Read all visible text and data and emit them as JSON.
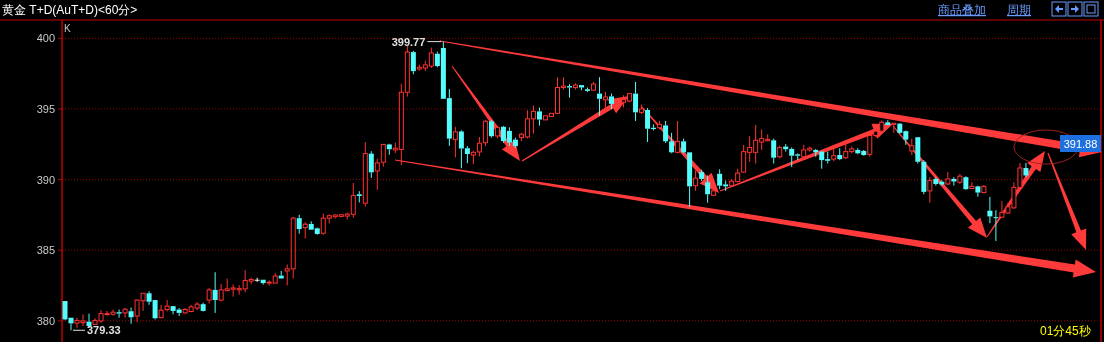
{
  "chart_data": {
    "type": "candlestick",
    "title": "黄金 T+D(AuT+D)<60分>",
    "categories": [
      null,
      null,
      null,
      null,
      null,
      null,
      null,
      null,
      null,
      null,
      null,
      null,
      null,
      null,
      null,
      null,
      null,
      null,
      null,
      null,
      null,
      null,
      null,
      null,
      null,
      null,
      null,
      null,
      null,
      null,
      null,
      null,
      null,
      null,
      null,
      null,
      null,
      null,
      null,
      null,
      null,
      null,
      null,
      null,
      null,
      null,
      null,
      null,
      null,
      null,
      null,
      null,
      null,
      null,
      null,
      null,
      null,
      null,
      null,
      null,
      null,
      null,
      null,
      null,
      null,
      null,
      null,
      null,
      null,
      null,
      null,
      null,
      null,
      null,
      null,
      null,
      null,
      null,
      null,
      null,
      null,
      null,
      null,
      null,
      null,
      null,
      null,
      null,
      null,
      null,
      null,
      null,
      null,
      null,
      null,
      null,
      null,
      null,
      null,
      null,
      null,
      null,
      null,
      null,
      null,
      null,
      null,
      null,
      null,
      null,
      null,
      null,
      null,
      null,
      null,
      null,
      null,
      null,
      null,
      null,
      null,
      null,
      null,
      null,
      null,
      null,
      null,
      null,
      null,
      null,
      null,
      null,
      null,
      null,
      null,
      null,
      null,
      null,
      null,
      null,
      null,
      null,
      null,
      null,
      null,
      null,
      null,
      null,
      null,
      null,
      null,
      null,
      null,
      null,
      null,
      null,
      null,
      null,
      null,
      null,
      null,
      null,
      null,
      null,
      null,
      null,
      null,
      null,
      null,
      null,
      null,
      null,
      null
    ],
    "ohlc": [
      [
        381.4,
        381.4,
        380.05,
        380.1
      ],
      [
        380.22,
        380.22,
        379.33,
        379.82
      ],
      [
        379.84,
        380.22,
        379.5,
        380.03
      ],
      [
        379.87,
        380.46,
        379.63,
        379.99
      ],
      [
        379.94,
        380.51,
        379.51,
        379.63
      ],
      [
        379.75,
        380.18,
        379.7,
        380.03
      ],
      [
        379.99,
        380.75,
        379.87,
        380.51
      ],
      [
        380.44,
        380.7,
        380.37,
        380.51
      ],
      [
        380.46,
        380.8,
        380.37,
        380.61
      ],
      [
        380.61,
        380.8,
        380.22,
        380.51
      ],
      [
        380.56,
        380.9,
        380.22,
        380.82
      ],
      [
        380.68,
        380.94,
        379.79,
        380.25
      ],
      [
        380.34,
        381.52,
        379.91,
        381.47
      ],
      [
        381.42,
        381.95,
        380.7,
        381.95
      ],
      [
        381.95,
        382.09,
        381.13,
        381.35
      ],
      [
        381.47,
        381.47,
        380.1,
        380.18
      ],
      [
        380.22,
        381.13,
        380.18,
        380.75
      ],
      [
        380.8,
        381.47,
        380.66,
        381.04
      ],
      [
        381.04,
        381.04,
        380.46,
        380.7
      ],
      [
        380.8,
        380.9,
        380.34,
        380.56
      ],
      [
        380.56,
        380.9,
        380.51,
        380.8
      ],
      [
        380.66,
        381.13,
        380.61,
        380.99
      ],
      [
        380.9,
        381.33,
        380.75,
        381.18
      ],
      [
        381.18,
        381.28,
        380.66,
        380.7
      ],
      [
        381.47,
        382.33,
        381.23,
        382.19
      ],
      [
        382.19,
        383.44,
        380.56,
        381.47
      ],
      [
        381.47,
        382.62,
        381.37,
        382.19
      ],
      [
        382.14,
        382.98,
        382.09,
        382.26
      ],
      [
        382.24,
        382.57,
        381.71,
        382.33
      ],
      [
        382.19,
        382.52,
        381.85,
        382.28
      ],
      [
        382.26,
        383.58,
        382.02,
        382.86
      ],
      [
        382.81,
        383.05,
        382.62,
        382.93
      ],
      [
        382.91,
        383.05,
        382.76,
        382.91
      ],
      [
        382.91,
        382.91,
        382.57,
        382.67
      ],
      [
        382.67,
        382.86,
        382.5,
        382.74
      ],
      [
        382.67,
        383.39,
        382.67,
        383.17
      ],
      [
        383.2,
        383.53,
        383.0,
        383.0
      ],
      [
        383.53,
        383.99,
        382.5,
        383.68
      ],
      [
        383.68,
        387.36,
        383.0,
        387.27
      ],
      [
        387.27,
        387.51,
        386.17,
        386.5
      ],
      [
        386.6,
        386.98,
        385.83,
        386.84
      ],
      [
        386.86,
        387.05,
        386.45,
        386.45
      ],
      [
        386.55,
        386.6,
        386.1,
        386.15
      ],
      [
        386.2,
        387.59,
        386.1,
        387.27
      ],
      [
        387.27,
        387.54,
        386.89,
        387.44
      ],
      [
        387.37,
        387.54,
        387.25,
        387.49
      ],
      [
        387.39,
        387.51,
        387.34,
        387.51
      ],
      [
        387.42,
        387.66,
        387.18,
        387.56
      ],
      [
        387.54,
        389.76,
        387.3,
        388.87
      ],
      [
        388.96,
        389.18,
        388.38,
        388.84
      ],
      [
        388.33,
        392.66,
        388.09,
        391.84
      ],
      [
        391.84,
        392.01,
        390.12,
        390.51
      ],
      [
        390.61,
        391.47,
        389.28,
        391.18
      ],
      [
        391.23,
        392.49,
        390.92,
        392.49
      ],
      [
        392.49,
        392.54,
        391.76,
        392.15
      ],
      [
        392.1,
        392.61,
        391.88,
        392.22
      ],
      [
        392.13,
        396.79,
        391.04,
        396.18
      ],
      [
        396.18,
        399.49,
        395.87,
        399.03
      ],
      [
        399.03,
        399.11,
        397.46,
        397.68
      ],
      [
        397.83,
        398.14,
        397.71,
        397.95
      ],
      [
        397.9,
        398.41,
        397.68,
        398.12
      ],
      [
        398.04,
        399.35,
        397.9,
        398.96
      ],
      [
        398.91,
        399.06,
        397.95,
        398.04
      ],
      [
        399.32,
        399.77,
        395.72,
        395.72
      ],
      [
        395.77,
        396.42,
        392.39,
        392.9
      ],
      [
        392.83,
        393.74,
        391.57,
        393.38
      ],
      [
        393.41,
        393.5,
        390.8,
        392.2
      ],
      [
        392.22,
        392.37,
        391.16,
        391.81
      ],
      [
        391.74,
        392.05,
        391.09,
        391.93
      ],
      [
        391.96,
        393.02,
        391.64,
        392.58
      ],
      [
        392.61,
        394.23,
        392.37,
        394.13
      ],
      [
        394.13,
        394.23,
        392.97,
        393.07
      ],
      [
        393.09,
        393.82,
        392.92,
        393.7
      ],
      [
        393.74,
        393.8,
        392.61,
        392.73
      ],
      [
        393.45,
        393.7,
        392.37,
        392.61
      ],
      [
        392.83,
        392.97,
        392.25,
        392.37
      ],
      [
        392.97,
        393.31,
        392.73,
        393.21
      ],
      [
        393.02,
        394.9,
        392.92,
        394.3
      ],
      [
        394.3,
        395.24,
        393.26,
        394.83
      ],
      [
        394.83,
        395.1,
        393.82,
        394.25
      ],
      [
        394.23,
        394.52,
        394.2,
        394.52
      ],
      [
        394.47,
        394.7,
        394.45,
        394.69
      ],
      [
        394.69,
        397.25,
        394.64,
        396.52
      ],
      [
        396.52,
        397.25,
        396.38,
        396.62
      ],
      [
        396.62,
        396.76,
        395.8,
        396.52
      ],
      [
        396.52,
        396.81,
        396.38,
        396.69
      ],
      [
        396.69,
        396.69,
        396.33,
        396.52
      ],
      [
        396.4,
        396.52,
        396.21,
        396.28
      ],
      [
        396.33,
        396.91,
        396.28,
        396.76
      ],
      [
        396.09,
        397.25,
        394.52,
        395.72
      ],
      [
        395.65,
        396.21,
        394.76,
        395.85
      ],
      [
        395.89,
        396.09,
        395.0,
        395.36
      ],
      null,
      [
        395.48,
        395.97,
        395.12,
        395.65
      ],
      [
        395.56,
        396.14,
        395.48,
        396.09
      ],
      [
        396.09,
        396.91,
        394.15,
        394.76
      ],
      [
        394.76,
        395.31,
        394.64,
        395.0
      ],
      [
        394.93,
        395.07,
        392.66,
        393.6
      ],
      [
        393.67,
        393.91,
        393.48,
        393.58
      ],
      [
        393.67,
        394.15,
        393.55,
        393.91
      ],
      [
        393.84,
        394.15,
        392.59,
        392.71
      ],
      [
        392.71,
        393.31,
        391.86,
        391.93
      ],
      [
        391.93,
        394.15,
        391.86,
        392.71
      ],
      [
        392.71,
        392.9,
        391.86,
        391.93
      ],
      [
        391.93,
        391.93,
        388.07,
        389.52
      ],
      [
        389.57,
        390.65,
        389.2,
        390.1
      ],
      [
        390.53,
        390.7,
        389.9,
        390.05
      ],
      [
        389.81,
        390.29,
        388.36,
        388.96
      ],
      [
        388.89,
        389.69,
        388.84,
        389.2
      ],
      [
        390.41,
        390.73,
        389.32,
        389.57
      ],
      [
        389.66,
        389.93,
        389.2,
        389.52
      ],
      [
        389.57,
        390.05,
        389.52,
        389.88
      ],
      [
        389.86,
        390.77,
        389.81,
        390.46
      ],
      [
        390.53,
        392.46,
        390.48,
        391.98
      ],
      [
        391.93,
        393.07,
        391.26,
        392.27
      ],
      [
        391.93,
        393.87,
        391.14,
        392.78
      ],
      [
        392.66,
        393.55,
        392.1,
        392.9
      ],
      [
        392.75,
        393.2,
        392.71,
        392.85
      ],
      [
        392.78,
        392.9,
        391.14,
        391.55
      ],
      [
        391.62,
        392.4,
        391.5,
        392.27
      ],
      [
        392.34,
        392.51,
        391.98,
        392.15
      ],
      [
        392.17,
        392.27,
        390.89,
        391.69
      ],
      [
        391.79,
        391.86,
        391.38,
        391.69
      ],
      [
        391.62,
        392.46,
        391.5,
        392.1
      ],
      [
        392.1,
        392.34,
        391.98,
        392.22
      ],
      [
        392.1,
        392.17,
        391.62,
        391.93
      ],
      [
        391.98,
        392.03,
        390.77,
        391.38
      ],
      [
        391.45,
        391.98,
        391.14,
        391.33
      ],
      [
        391.45,
        392.46,
        391.3,
        391.69
      ],
      [
        391.74,
        392.22,
        391.38,
        391.45
      ],
      [
        391.55,
        392.59,
        391.45,
        391.98
      ],
      [
        391.98,
        392.34,
        391.86,
        392.17
      ],
      [
        392.1,
        392.22,
        391.79,
        391.86
      ],
      [
        392.03,
        392.1,
        391.69,
        391.74
      ],
      [
        391.79,
        393.19,
        391.62,
        393.12
      ],
      [
        393.12,
        393.6,
        393.0,
        393.43
      ],
      [
        393.43,
        394.2,
        393.38,
        394.06
      ],
      [
        394.06,
        394.2,
        393.86,
        393.86
      ],
      [
        393.91,
        393.99,
        393.31,
        393.99
      ],
      [
        393.96,
        394.01,
        393.24,
        393.31
      ],
      [
        393.43,
        393.48,
        392.46,
        392.83
      ],
      [
        392.03,
        392.9,
        391.74,
        392.39
      ],
      [
        393.0,
        393.0,
        391.14,
        391.26
      ],
      [
        391.26,
        391.38,
        388.96,
        389.13
      ],
      [
        389.2,
        390.17,
        388.36,
        389.93
      ],
      [
        390.05,
        390.17,
        389.57,
        389.69
      ],
      [
        389.85,
        389.95,
        389.55,
        389.65
      ],
      [
        389.69,
        390.53,
        389.61,
        390.05
      ],
      [
        390.05,
        390.17,
        389.57,
        389.86
      ],
      [
        389.81,
        390.41,
        389.69,
        390.24
      ],
      [
        390.17,
        390.24,
        389.28,
        389.32
      ],
      [
        389.37,
        389.81,
        389.37,
        389.52
      ],
      [
        389.52,
        389.57,
        388.79,
        389.08
      ],
      [
        389.08,
        389.61,
        389.03,
        389.52
      ],
      [
        387.8,
        388.77,
        386.91,
        387.39
      ],
      [
        387.34,
        387.83,
        385.65,
        387.3
      ],
      [
        387.34,
        388.48,
        387.27,
        387.68
      ],
      [
        387.63,
        388.36,
        387.59,
        388.07
      ],
      [
        388.0,
        389.81,
        387.92,
        389.45
      ],
      [
        389.45,
        391.18,
        389.37,
        390.82
      ],
      [
        390.82,
        391.18,
        390.17,
        390.29
      ],
      null,
      null,
      null,
      null,
      null,
      null,
      null,
      null,
      null,
      null,
      null,
      null
    ],
    "ylim": [
      378.5,
      401.3
    ],
    "yticks": [
      380,
      385,
      390,
      395,
      400
    ],
    "grid": "y",
    "tick_labels": "y",
    "annotations": [
      "399.77",
      "379.33",
      "391.88",
      "K",
      "商品叠加",
      "周期",
      "01分45秒"
    ]
  }
}
